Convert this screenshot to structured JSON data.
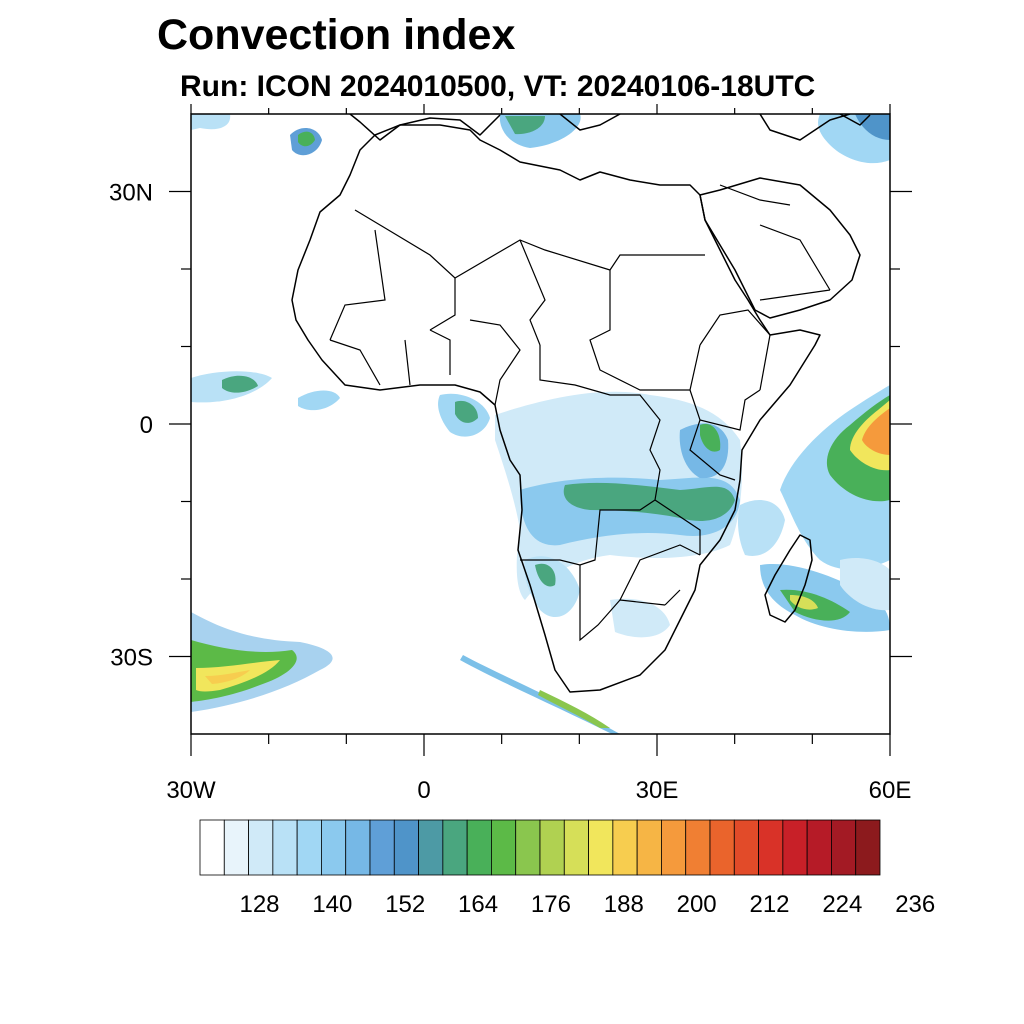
{
  "title": "Convection index",
  "subtitle": {
    "run": "Run: ICON 2024010500,",
    "vt": "VT: 20240106-18UTC"
  },
  "map": {
    "lon_range": [
      -30,
      60
    ],
    "lat_range": [
      -40,
      40
    ],
    "lon_ticks": [
      {
        "value": -30,
        "label": "30W"
      },
      {
        "value": 0,
        "label": "0"
      },
      {
        "value": 30,
        "label": "30E"
      },
      {
        "value": 60,
        "label": "60E"
      }
    ],
    "lat_ticks": [
      {
        "value": 30,
        "label": "30N"
      },
      {
        "value": 0,
        "label": "0"
      },
      {
        "value": -30,
        "label": "30S"
      }
    ],
    "minor_lon_ticks": [
      -20,
      -10,
      10,
      20,
      40,
      50
    ],
    "minor_lat_ticks": [
      20,
      10,
      -10,
      -20
    ]
  },
  "colorbar": {
    "colors": [
      "#ffffff",
      "#e8f4fb",
      "#d0eaf8",
      "#b9e1f6",
      "#a1d7f4",
      "#8bc9ee",
      "#76b8e6",
      "#5f9fd7",
      "#4f94c9",
      "#4d9aa5",
      "#4aa67f",
      "#49b059",
      "#5cba47",
      "#8ac64e",
      "#b0d151",
      "#d6df58",
      "#f1e65c",
      "#f7cd4f",
      "#f6b545",
      "#f59a3c",
      "#f07f33",
      "#ea642c",
      "#e24b29",
      "#d93228",
      "#c82028",
      "#b61b27",
      "#a31a24",
      "#8c1a1d"
    ],
    "labels": [
      "128",
      "140",
      "152",
      "164",
      "176",
      "188",
      "200",
      "212",
      "224",
      "236"
    ]
  }
}
